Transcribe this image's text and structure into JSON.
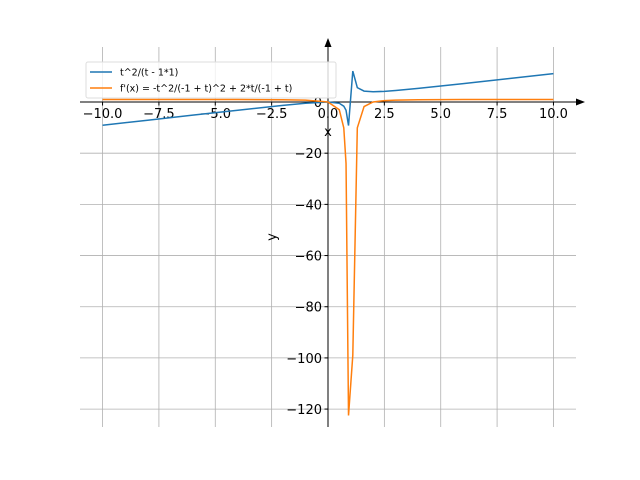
{
  "chart_data": {
    "type": "line",
    "xlabel": "x",
    "ylabel": "y",
    "x": [
      -10,
      -8,
      -6,
      -4,
      -2,
      -1,
      0,
      0.5,
      0.7,
      0.8,
      0.91,
      1.1,
      1.3,
      1.6,
      2,
      2.5,
      3,
      4,
      6,
      8,
      10
    ],
    "series": [
      {
        "name": "t^2/(t - 1*1)",
        "color": "#1f77b4",
        "values": [
          -9.09,
          -7.11,
          -5.14,
          -3.2,
          -1.33,
          -0.5,
          0,
          -0.5,
          -1.63,
          -3.2,
          -9.2,
          12.1,
          5.63,
          4.27,
          4,
          4.17,
          4.5,
          5.33,
          7.2,
          9.14,
          11.11
        ]
      },
      {
        "name": "f'(x) = -t^2/(-1 + t)^2 + 2*t/(-1 + t)",
        "color": "#ff7f0e",
        "values": [
          0.99,
          0.99,
          0.98,
          0.96,
          0.89,
          0.75,
          0,
          -3,
          -10.1,
          -24,
          -122.5,
          -99,
          -10.1,
          -1.78,
          0,
          0.56,
          0.75,
          0.89,
          0.96,
          0.98,
          0.99
        ]
      }
    ],
    "xlim": [
      -11,
      11
    ],
    "ylim": [
      -127,
      21.5
    ],
    "xticks": [
      {
        "value": -10,
        "label": "−10.0"
      },
      {
        "value": -7.5,
        "label": "−7.5"
      },
      {
        "value": -5,
        "label": "−5.0"
      },
      {
        "value": -2.5,
        "label": "−2.5"
      },
      {
        "value": 0,
        "label": "0.0"
      },
      2.5,
      {
        "value": 5,
        "label": "5.0"
      },
      7.5,
      {
        "value": 10,
        "label": "10.0"
      }
    ],
    "yticks": [
      {
        "value": -120,
        "label": "−120"
      },
      {
        "value": -100,
        "label": "−100"
      },
      {
        "value": -80,
        "label": "−80"
      },
      {
        "value": -60,
        "label": "−60"
      },
      {
        "value": -40,
        "label": "−40"
      },
      {
        "value": -20,
        "label": "−20"
      },
      0
    ],
    "grid": true,
    "legend": "upper left"
  }
}
